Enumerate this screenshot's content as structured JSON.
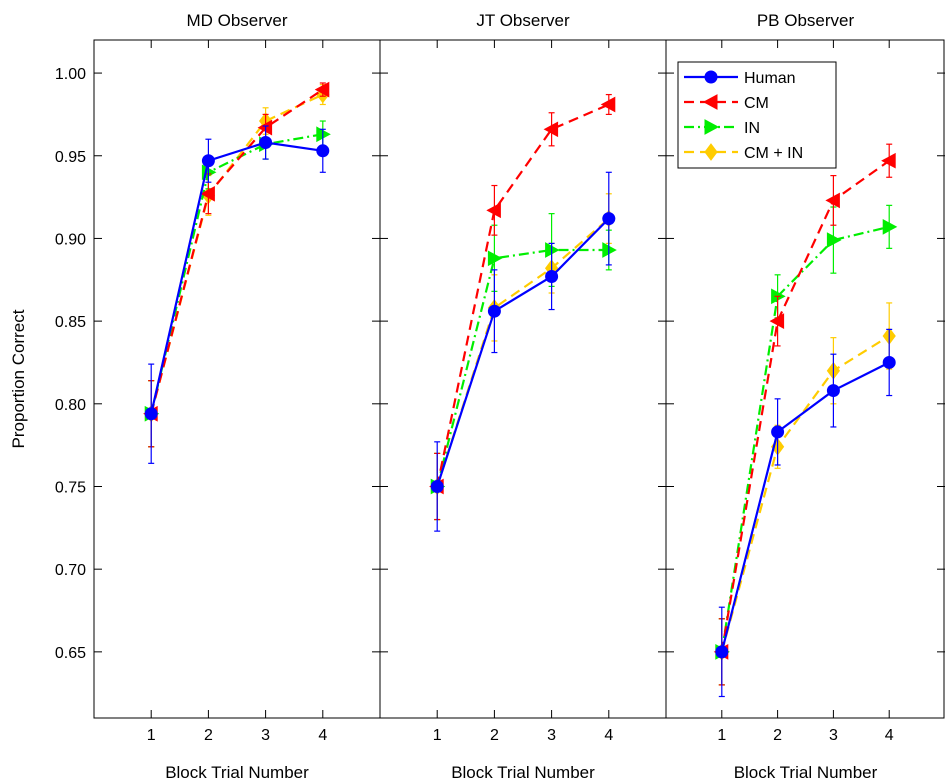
{
  "chart_data": {
    "type": "line",
    "ylabel": "Proportion Correct",
    "ylim": [
      0.61,
      1.02
    ],
    "yticks": [
      0.65,
      0.7,
      0.75,
      0.8,
      0.85,
      0.9,
      0.95,
      1.0
    ],
    "ytick_labels": [
      "0.65",
      "0.70",
      "0.75",
      "0.80",
      "0.85",
      "0.90",
      "0.95",
      "1.00"
    ],
    "xlim": [
      0,
      5
    ],
    "xticks": [
      1,
      2,
      3,
      4
    ],
    "xtick_labels": [
      "1",
      "2",
      "3",
      "4"
    ],
    "grid": false,
    "legend": {
      "placement": "top-left of third panel",
      "entries": [
        "Human",
        "CM",
        "IN",
        "CM + IN"
      ]
    },
    "series_styles": [
      {
        "name": "Human",
        "color": "#0000ff",
        "dash": "solid",
        "marker": "circle"
      },
      {
        "name": "CM",
        "color": "#ff0000",
        "dash": "dashed",
        "marker": "triangle-left"
      },
      {
        "name": "IN",
        "color": "#00ee00",
        "dash": "dashdot",
        "marker": "triangle-right"
      },
      {
        "name": "CM + IN",
        "color": "#ffcc00",
        "dash": "dashed",
        "marker": "diamond"
      }
    ],
    "panels": [
      {
        "title": "MD Observer",
        "xlabel": "Block Trial Number",
        "series": [
          {
            "name": "Human",
            "x": [
              1,
              2,
              3,
              4
            ],
            "values": [
              0.794,
              0.947,
              0.958,
              0.953
            ],
            "err": [
              0.03,
              0.013,
              0.01,
              0.013
            ]
          },
          {
            "name": "CM",
            "x": [
              1,
              2,
              3,
              4
            ],
            "values": [
              0.794,
              0.927,
              0.967,
              0.99
            ],
            "err": [
              0.02,
              0.012,
              0.008,
              0.004
            ]
          },
          {
            "name": "IN",
            "x": [
              1,
              2,
              3,
              4
            ],
            "values": [
              0.794,
              0.94,
              0.957,
              0.963
            ],
            "err": [
              0.02,
              0.01,
              0.009,
              0.008
            ]
          },
          {
            "name": "CM + IN",
            "x": [
              1,
              2,
              3,
              4
            ],
            "values": [
              0.794,
              0.926,
              0.971,
              0.987
            ],
            "err": [
              0.02,
              0.012,
              0.008,
              0.006
            ]
          }
        ]
      },
      {
        "title": "JT Observer",
        "xlabel": "Block Trial Number",
        "series": [
          {
            "name": "Human",
            "x": [
              1,
              2,
              3,
              4
            ],
            "values": [
              0.75,
              0.856,
              0.877,
              0.912
            ],
            "err": [
              0.027,
              0.025,
              0.02,
              0.028
            ]
          },
          {
            "name": "CM",
            "x": [
              1,
              2,
              3,
              4
            ],
            "values": [
              0.75,
              0.917,
              0.966,
              0.981
            ],
            "err": [
              0.02,
              0.015,
              0.01,
              0.006
            ]
          },
          {
            "name": "IN",
            "x": [
              1,
              2,
              3,
              4
            ],
            "values": [
              0.75,
              0.888,
              0.893,
              0.893
            ],
            "err": [
              0.02,
              0.02,
              0.022,
              0.012
            ]
          },
          {
            "name": "CM + IN",
            "x": [
              1,
              2,
              3,
              4
            ],
            "values": [
              0.75,
              0.858,
              0.882,
              0.912
            ],
            "err": [
              0.02,
              0.02,
              0.015,
              0.015
            ]
          }
        ]
      },
      {
        "title": "PB Observer",
        "xlabel": "Block Trial Number",
        "series": [
          {
            "name": "Human",
            "x": [
              1,
              2,
              3,
              4
            ],
            "values": [
              0.65,
              0.783,
              0.808,
              0.825
            ],
            "err": [
              0.027,
              0.02,
              0.022,
              0.02
            ]
          },
          {
            "name": "CM",
            "x": [
              1,
              2,
              3,
              4
            ],
            "values": [
              0.65,
              0.85,
              0.923,
              0.947
            ],
            "err": [
              0.02,
              0.015,
              0.015,
              0.01
            ]
          },
          {
            "name": "IN",
            "x": [
              1,
              2,
              3,
              4
            ],
            "values": [
              0.65,
              0.865,
              0.899,
              0.907
            ],
            "err": [
              0.02,
              0.013,
              0.02,
              0.013
            ]
          },
          {
            "name": "CM + IN",
            "x": [
              1,
              2,
              3,
              4
            ],
            "values": [
              0.65,
              0.774,
              0.82,
              0.841
            ],
            "err": [
              0.02,
              0.013,
              0.02,
              0.02
            ]
          }
        ]
      }
    ]
  }
}
